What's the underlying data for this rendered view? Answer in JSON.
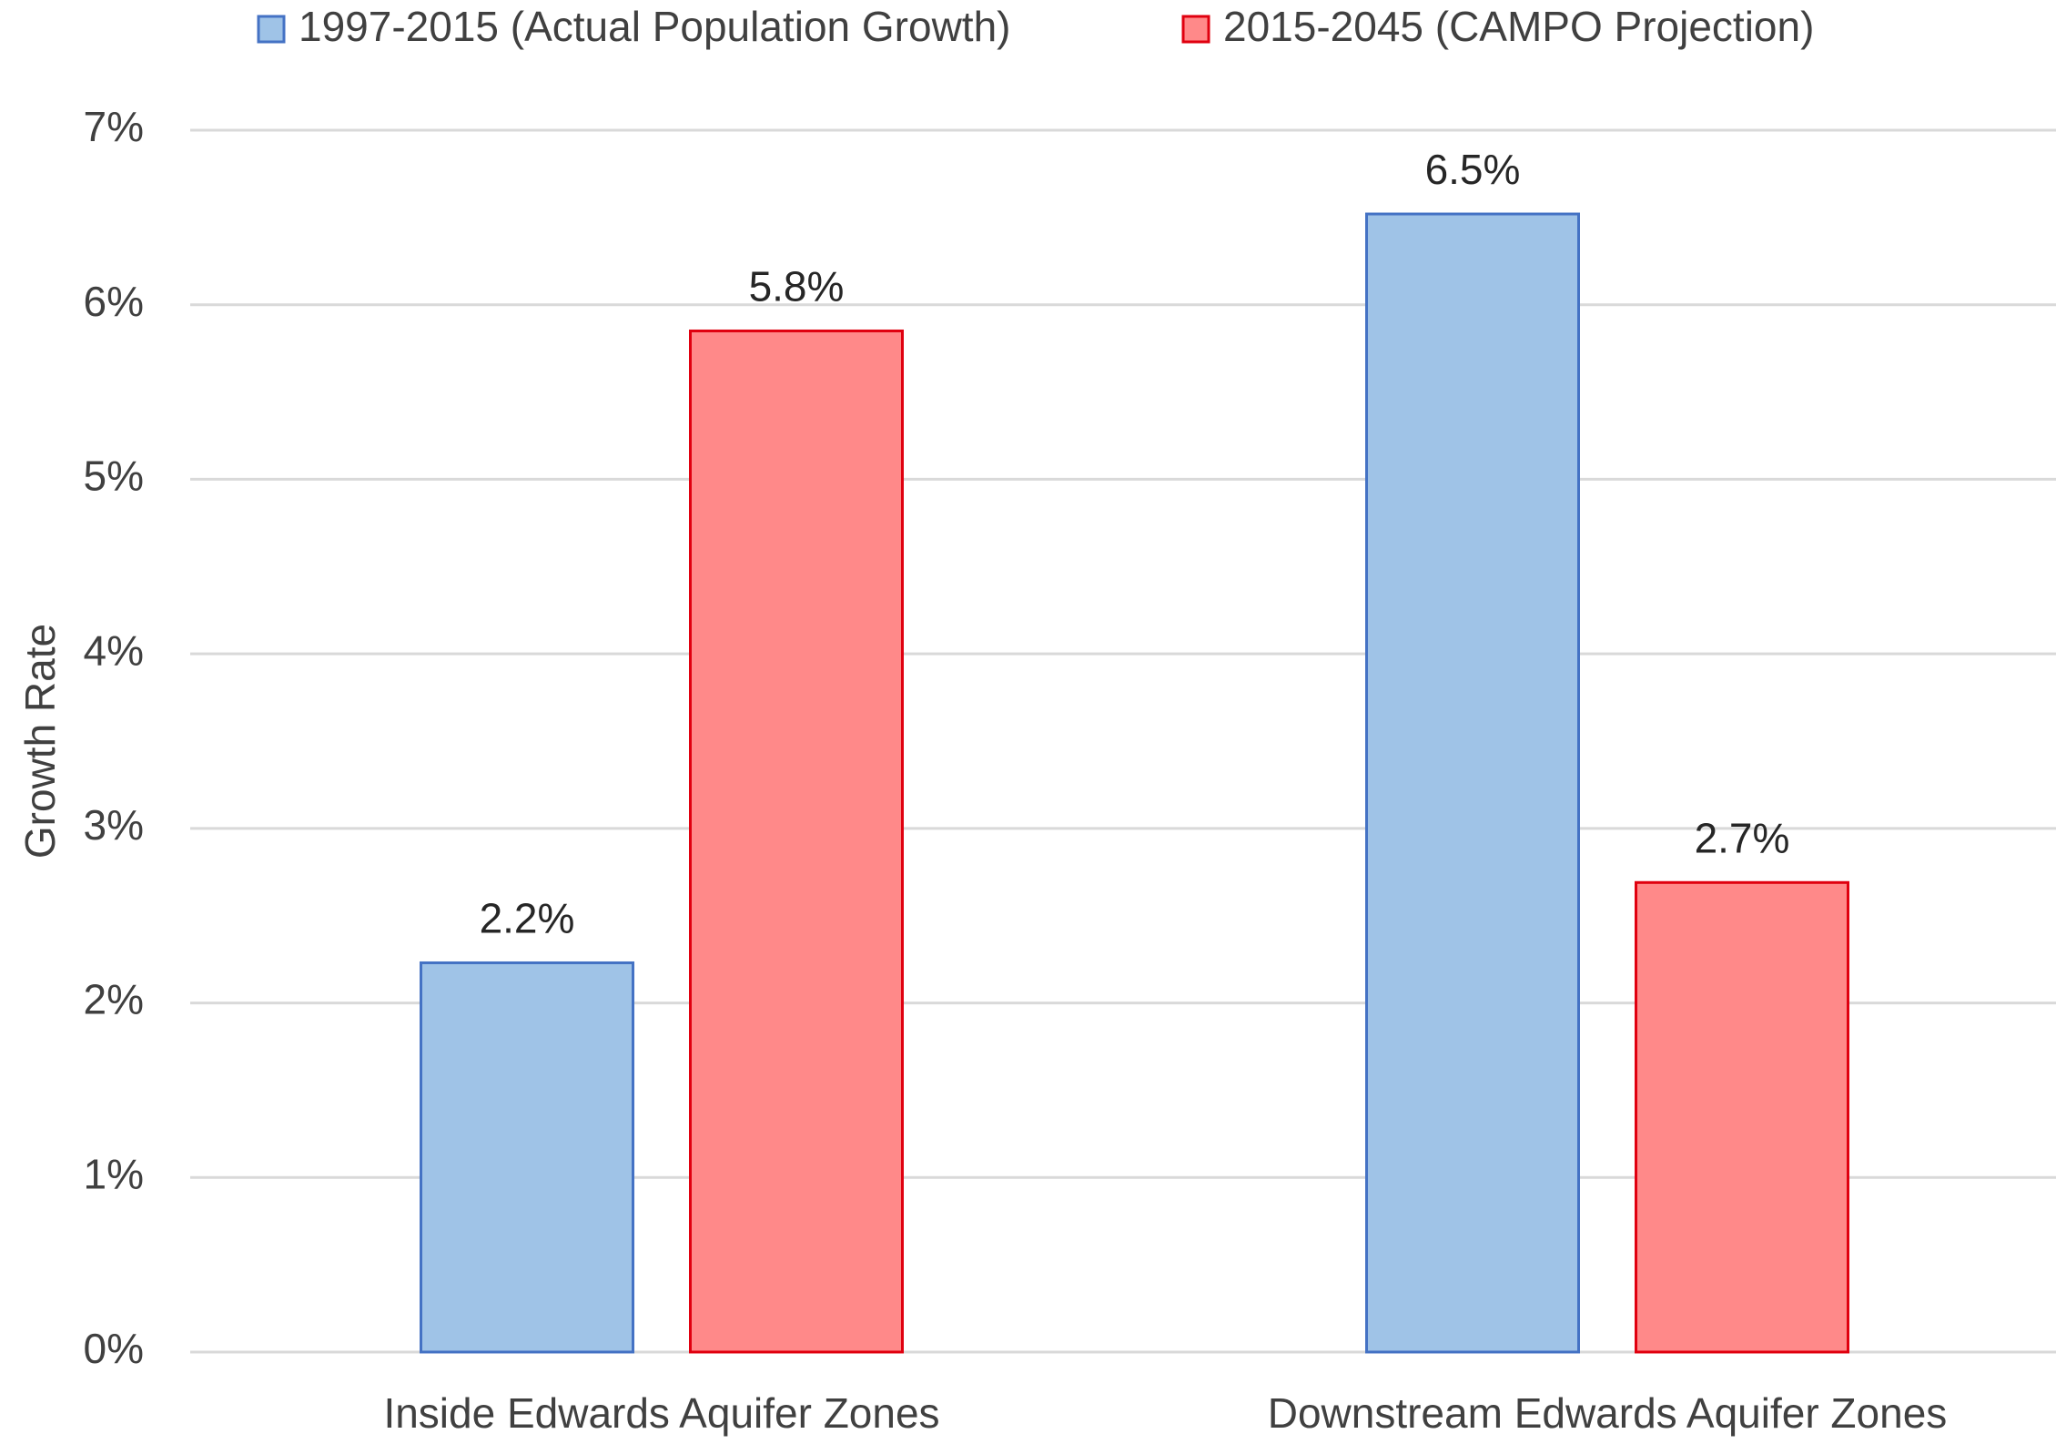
{
  "chart_data": {
    "type": "bar",
    "y_label": "Growth Rate",
    "categories": [
      "Inside Edwards Aquifer Zones",
      "Downstream Edwards Aquifer Zones"
    ],
    "series": [
      {
        "name": "1997-2015 (Actual Population Growth)",
        "color": "#9fc3e7",
        "edge_color": "#4472c4",
        "values": [
          2.23,
          6.52
        ],
        "value_labels": [
          "2.2%",
          "6.5%"
        ]
      },
      {
        "name": "2015-2045 (CAMPO Projection)",
        "color": "#ff8989",
        "edge_color": "#e0000f",
        "values": [
          5.85,
          2.69
        ],
        "value_labels": [
          "5.8%",
          "2.7%"
        ]
      }
    ],
    "ylim": [
      0,
      7
    ],
    "yticks": [
      {
        "value": 0,
        "label": "0%"
      },
      {
        "value": 1,
        "label": "1%"
      },
      {
        "value": 2,
        "label": "2%"
      },
      {
        "value": 3,
        "label": "3%"
      },
      {
        "value": 4,
        "label": "4%"
      },
      {
        "value": 5,
        "label": "5%"
      },
      {
        "value": 6,
        "label": "6%"
      },
      {
        "value": 7,
        "label": "7%"
      }
    ],
    "grid": true,
    "legend": "top"
  }
}
